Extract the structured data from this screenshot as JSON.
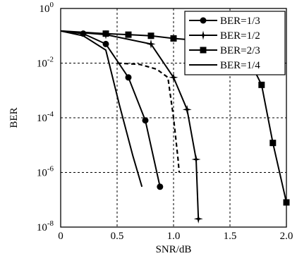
{
  "chart_data": {
    "type": "line",
    "title": "",
    "xlabel": "SNR/dB",
    "ylabel": "BER",
    "xlim": [
      0,
      2
    ],
    "ylim_exponent": [
      -8,
      0
    ],
    "y_scale": "log",
    "x_ticks": [
      "0",
      "0.5",
      "1.0",
      "1.5",
      "2.0"
    ],
    "y_ticks": [
      {
        "base": "10",
        "exp": "0"
      },
      {
        "base": "10",
        "exp": "-2"
      },
      {
        "base": "10",
        "exp": "-4"
      },
      {
        "base": "10",
        "exp": "-6"
      },
      {
        "base": "10",
        "exp": "-8"
      }
    ],
    "grid": true,
    "legend_position": "top-right",
    "series": [
      {
        "name": "BER=1/3",
        "marker": "circle",
        "style": "solid",
        "x": [
          0.0,
          0.2,
          0.4,
          0.6,
          0.75,
          0.88
        ],
        "y": [
          0.15,
          0.12,
          0.05,
          0.003,
          8e-05,
          3e-07
        ]
      },
      {
        "name": "BER=1/2",
        "marker": "star",
        "style": "solid",
        "x": [
          0.0,
          0.4,
          0.8,
          1.0,
          1.12,
          1.2,
          1.22
        ],
        "y": [
          0.15,
          0.11,
          0.05,
          0.003,
          0.0002,
          3e-06,
          2e-08
        ]
      },
      {
        "name": "BER=2/3",
        "marker": "square",
        "style": "solid",
        "x": [
          0.0,
          0.4,
          0.6,
          0.8,
          1.0,
          1.6,
          1.78,
          1.88,
          2.0
        ],
        "y": [
          0.15,
          0.12,
          0.11,
          0.1,
          0.08,
          0.05,
          0.0016,
          1.2e-05,
          8e-08
        ]
      },
      {
        "name": "BER=1/4",
        "marker": "none",
        "style": "solid",
        "x": [
          0.0,
          0.2,
          0.4,
          0.52,
          0.64,
          0.72
        ],
        "y": [
          0.15,
          0.1,
          0.03,
          0.0003,
          4e-06,
          3e-07
        ]
      },
      {
        "name": "",
        "marker": "none",
        "style": "dashed",
        "x": [
          0.5,
          0.7,
          0.85,
          0.95,
          1.0,
          1.04,
          1.05
        ],
        "y": [
          0.01,
          0.009,
          0.006,
          0.003,
          0.0001,
          3e-06,
          1e-06
        ]
      }
    ]
  }
}
